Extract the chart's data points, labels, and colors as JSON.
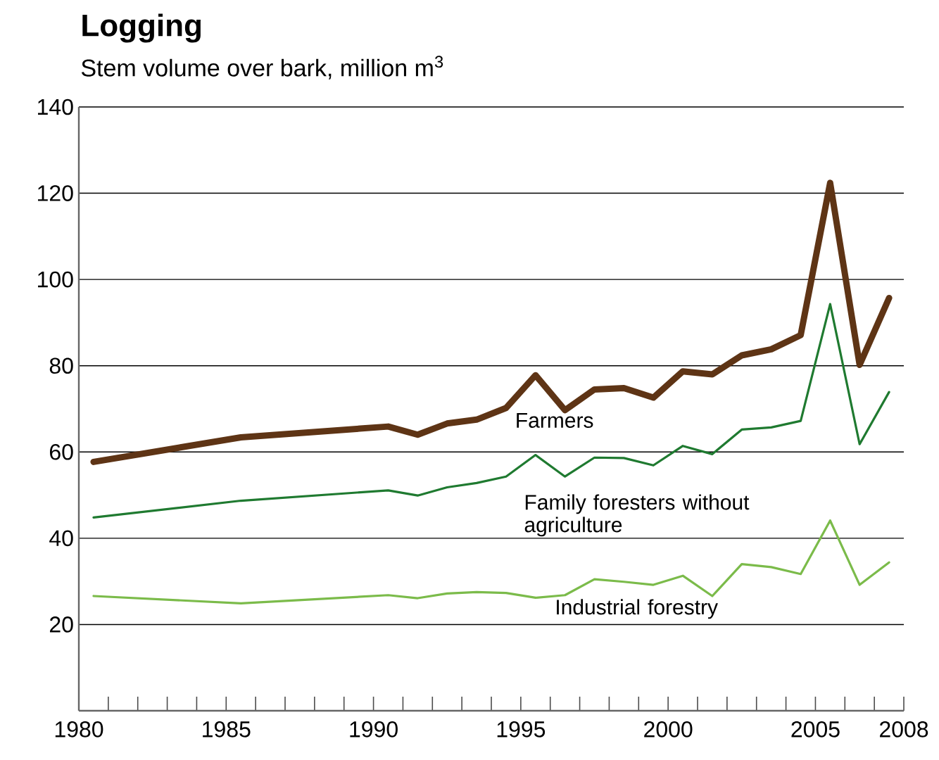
{
  "chart_data": {
    "type": "line",
    "title": "Logging",
    "subtitle": "Stem volume over bark, million m$^{3}$",
    "x": [
      1980.5,
      1985.5,
      1990.5,
      1991.5,
      1992.5,
      1993.5,
      1994.5,
      1995.5,
      1996.5,
      1997.5,
      1998.5,
      1999.5,
      2000.5,
      2001.5,
      2002.5,
      2003.5,
      2004.5,
      2005.5,
      2006.5,
      2007.5
    ],
    "series": [
      {
        "name": "Farmers",
        "color": "#5e3415",
        "values": [
          57.7,
          63.4,
          65.9,
          64.0,
          66.6,
          67.5,
          70.2,
          77.8,
          69.7,
          74.5,
          74.8,
          72.6,
          78.7,
          78.0,
          82.4,
          83.8,
          87.1,
          122.4,
          80.2,
          95.7
        ]
      },
      {
        "name": "Family foresters without agriculture",
        "color": "#1f7a30",
        "values": [
          44.8,
          48.7,
          51.1,
          49.9,
          51.8,
          52.8,
          54.3,
          59.3,
          54.3,
          58.7,
          58.6,
          56.9,
          61.4,
          59.5,
          65.2,
          65.7,
          67.2,
          94.3,
          61.8,
          73.9
        ]
      },
      {
        "name": "Industrial forestry",
        "color": "#7bbb4a",
        "values": [
          26.6,
          24.9,
          26.8,
          26.1,
          27.2,
          27.5,
          27.3,
          26.2,
          26.8,
          30.5,
          29.9,
          29.2,
          31.3,
          26.6,
          34.0,
          33.3,
          31.7,
          44.1,
          29.2,
          34.4
        ]
      }
    ],
    "xlim": [
      1980,
      2008
    ],
    "ylim": [
      0,
      140
    ],
    "xticks": [
      1980,
      {
        "value": 1981,
        "label": null
      },
      {
        "value": 1982,
        "label": null
      },
      {
        "value": 1983,
        "label": null
      },
      {
        "value": 1984,
        "label": null
      },
      1985,
      {
        "value": 1986,
        "label": null
      },
      {
        "value": 1987,
        "label": null
      },
      {
        "value": 1988,
        "label": null
      },
      {
        "value": 1989,
        "label": null
      },
      1990,
      {
        "value": 1991,
        "label": null
      },
      {
        "value": 1992,
        "label": null
      },
      {
        "value": 1993,
        "label": null
      },
      {
        "value": 1994,
        "label": null
      },
      1995,
      {
        "value": 1996,
        "label": null
      },
      {
        "value": 1997,
        "label": null
      },
      {
        "value": 1998,
        "label": null
      },
      {
        "value": 1999,
        "label": null
      },
      2000,
      {
        "value": 2001,
        "label": null
      },
      {
        "value": 2002,
        "label": null
      },
      {
        "value": 2003,
        "label": null
      },
      {
        "value": 2004,
        "label": null
      },
      2005,
      {
        "value": 2006,
        "label": null
      },
      {
        "value": 2007,
        "label": null
      },
      2008
    ],
    "yticks": [
      {
        "value": 0,
        "label": null
      },
      20,
      40,
      60,
      80,
      100,
      120,
      140
    ],
    "grid": "y",
    "marker": "none",
    "line_style": "solid"
  }
}
